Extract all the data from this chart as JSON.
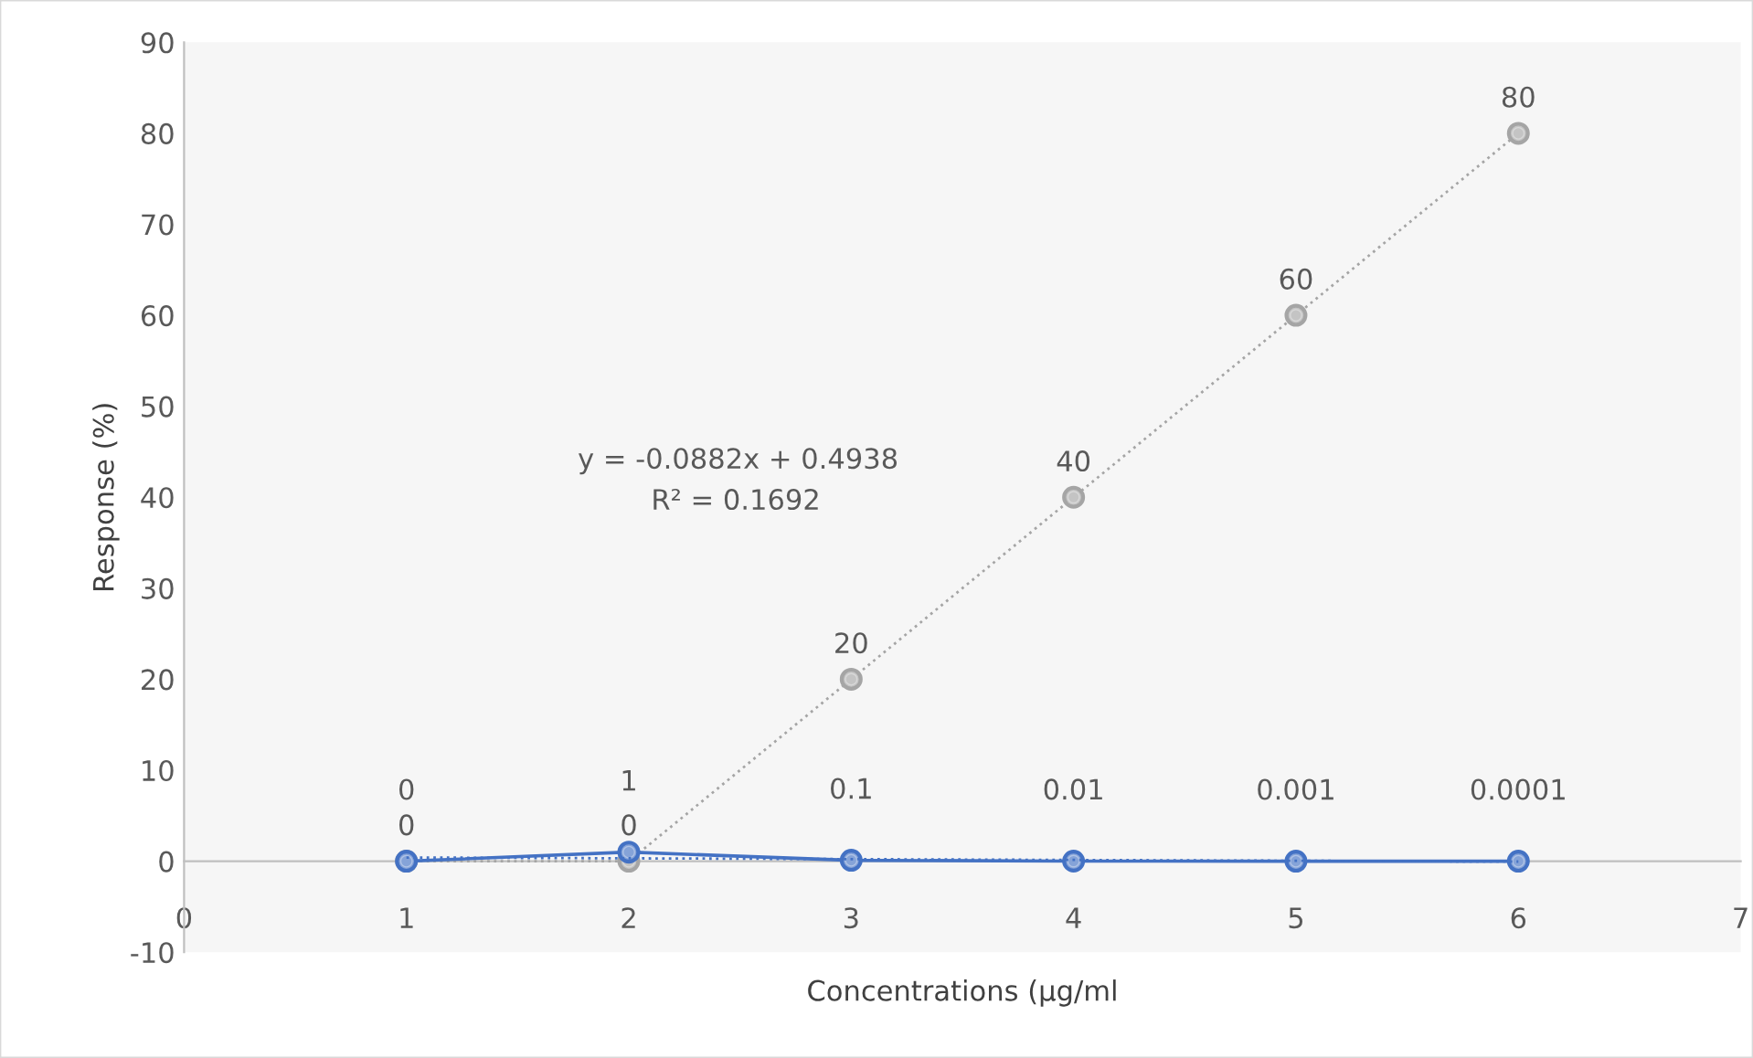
{
  "chart_data": {
    "type": "scatter",
    "xlabel": "Concentrations (µg/ml",
    "ylabel": "Response (%)",
    "x": [
      1,
      2,
      3,
      4,
      5,
      6
    ],
    "series": [
      {
        "color": "#a5a5a5",
        "values": [
          0,
          0,
          20,
          40,
          60,
          80
        ],
        "line_style": "dotted",
        "value_labels": [
          "0",
          "0",
          "20",
          "40",
          "60",
          "80"
        ]
      },
      {
        "color": "#4472c4",
        "values": [
          0,
          1,
          0.1,
          0.01,
          0.001,
          0.0001
        ],
        "line_style": "solid",
        "value_labels": [
          "0",
          "1",
          "0.1",
          "0.01",
          "0.001",
          "0.0001"
        ]
      },
      {
        "type": "line",
        "color": "#4472c4",
        "x": [
          1,
          6
        ],
        "values": [
          0.41,
          -0.04
        ],
        "line_style": "dotted"
      }
    ],
    "annotations": [
      "y = -0.0882x + 0.4938",
      "R² = 0.1692"
    ],
    "marker": "circle",
    "xlim": [
      0,
      7
    ],
    "xticks": [
      0,
      1,
      2,
      3,
      4,
      5,
      6,
      7
    ],
    "ylim": [
      -10,
      90
    ],
    "yticks": [
      -10,
      0,
      10,
      20,
      30,
      40,
      50,
      60,
      70,
      80,
      90
    ],
    "legend": false
  }
}
